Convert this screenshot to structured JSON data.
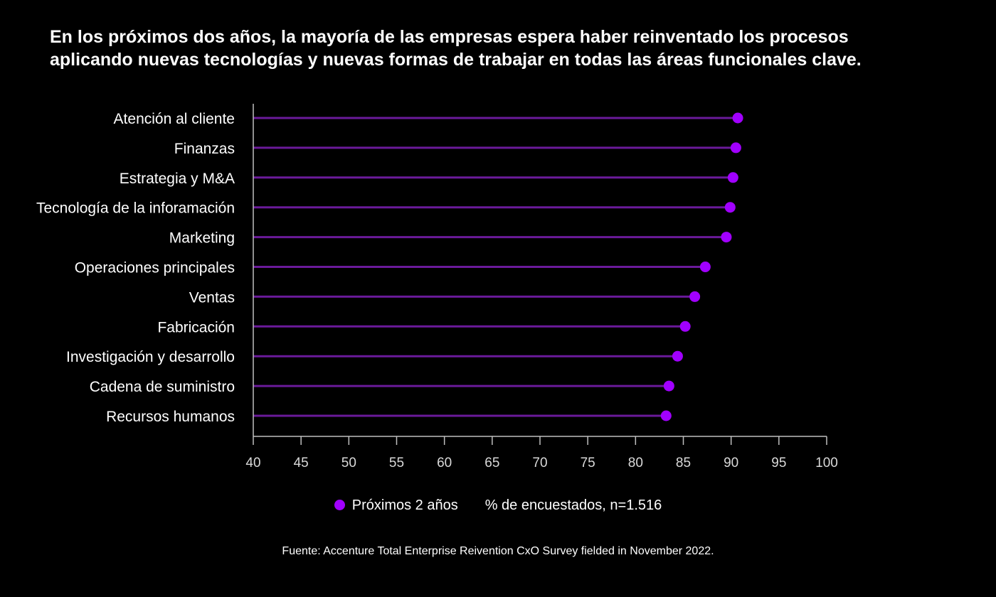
{
  "colors": {
    "background": "#000000",
    "accent": "#a100ff",
    "line": "#6a1a9a",
    "axis": "#bfbfbf",
    "text": "#ffffff"
  },
  "chart_data": {
    "type": "lollipop",
    "title_lines": [
      "En los próximos dos años, la  mayoría de las empresas espera haber reinventado los procesos",
      "aplicando nuevas tecnologías y nuevas formas de trabajar en todas las áreas funcionales clave."
    ],
    "categories": [
      "Atención al cliente",
      "Finanzas",
      "Estrategia y M&A",
      "Tecnología de la inforamación",
      "Marketing",
      "Operaciones principales",
      "Ventas",
      "Fabricación",
      "Investigación y desarrollo",
      "Cadena de suministro",
      "Recursos humanos"
    ],
    "series": [
      {
        "name": "Próximos 2 años",
        "values": [
          90.7,
          90.5,
          90.2,
          89.9,
          89.5,
          87.3,
          86.2,
          85.2,
          84.4,
          83.5,
          83.2
        ]
      }
    ],
    "xlim": [
      40,
      100
    ],
    "xticks": [
      40,
      45,
      50,
      55,
      60,
      65,
      70,
      75,
      80,
      85,
      90,
      95,
      100
    ],
    "legend": {
      "series_label": "Próximos 2 años",
      "note": "% de encuestados, n=1.516"
    },
    "source": "Fuente: Accenture Total Enterprise Reivention CxO Survey fielded in November 2022."
  }
}
